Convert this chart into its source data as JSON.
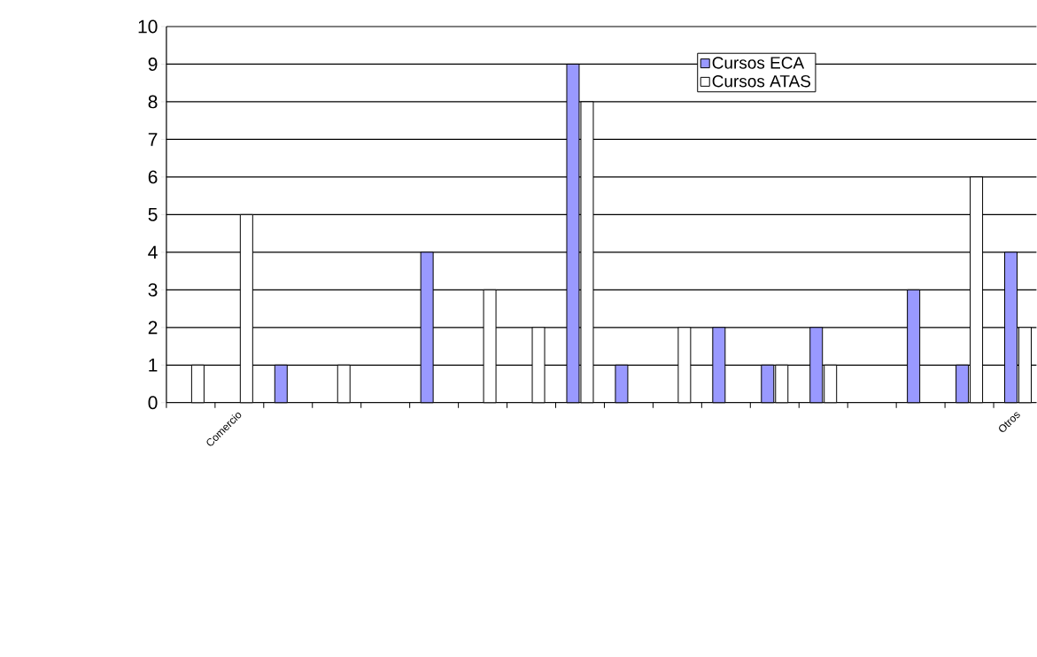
{
  "chart_data": {
    "type": "bar",
    "categories": [
      null,
      "Comercio",
      null,
      null,
      null,
      null,
      null,
      null,
      null,
      null,
      null,
      null,
      null,
      null,
      null,
      null,
      null,
      "Otros"
    ],
    "series": [
      {
        "name": "Cursos ECA",
        "color": "#9999ff",
        "values": [
          0,
          0,
          1,
          0,
          0,
          4,
          0,
          0,
          9,
          1,
          0,
          2,
          1,
          2,
          0,
          3,
          1,
          4
        ]
      },
      {
        "name": "Cursos ATAS",
        "color": "#ffffff",
        "values": [
          1,
          5,
          0,
          1,
          0,
          0,
          3,
          2,
          8,
          0,
          2,
          0,
          1,
          1,
          0,
          0,
          6,
          2
        ]
      }
    ],
    "ylim": [
      0,
      10
    ],
    "yticks": [
      0,
      1,
      2,
      3,
      4,
      5,
      6,
      7,
      8,
      9,
      10
    ],
    "grid": "y",
    "legend": "top right"
  }
}
